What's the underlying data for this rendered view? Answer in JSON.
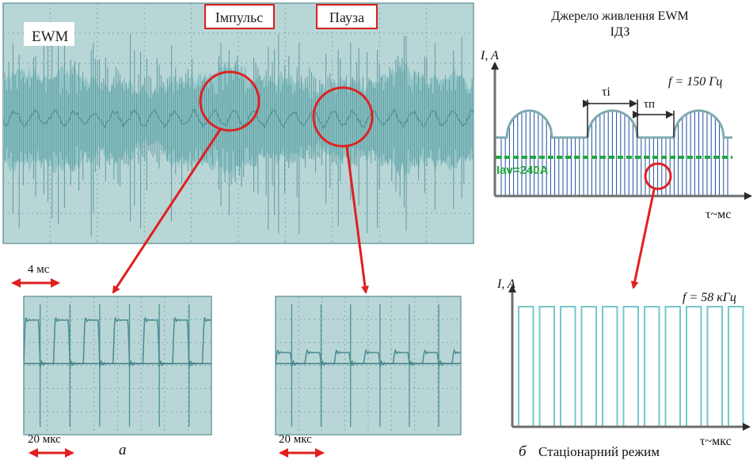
{
  "colors": {
    "screen": "#b9d6d7",
    "trace": "#4d9095",
    "traceFill": "#8ec3c5",
    "grid": "#7aa8ab",
    "label_border": "#d81e1e",
    "marker": "#e02020",
    "line": "#6f6f6f",
    "envelope": "#7fa9b0",
    "hatch": "#1e4fa0",
    "level": "#1ea83a",
    "pulse": "#76c7cb"
  },
  "main_scope": {
    "label_left": "EWM",
    "label_pulse": "Імпульс",
    "label_pause": "Пауза",
    "time_scale": "4 мс"
  },
  "small_scope_a": {
    "time_scale": "20 мкс",
    "caption": "а"
  },
  "small_scope_b": {
    "time_scale": "20 мкс"
  },
  "diagram_top": {
    "title_line1": "Джерело живлення EWM",
    "title_line2": "ІДЗ",
    "y_axis": "I, A",
    "x_axis": "τ~мс",
    "frequency": "f = 150 Гц",
    "tau_i": "τi",
    "tau_p": "τп",
    "level": "Iav=240A"
  },
  "diagram_bottom": {
    "y_axis": "I, A",
    "x_axis": "τ~мкс",
    "frequency": "f = 58 кГц",
    "caption": "б",
    "mode": "Стаціонарний режим"
  }
}
